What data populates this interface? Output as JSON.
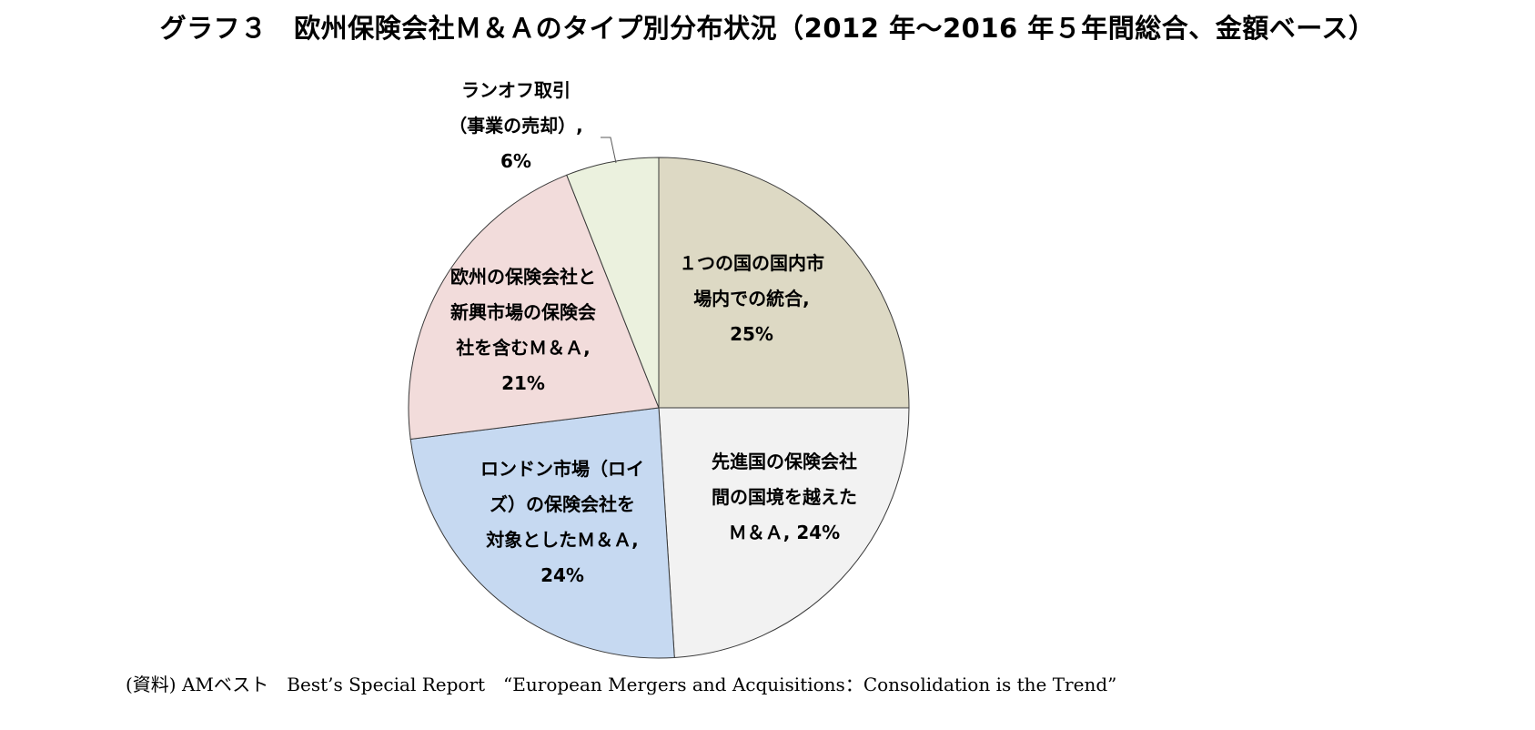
{
  "chart_data": {
    "type": "pie",
    "title": "グラフ３　欧州保険会社Ｍ＆Ａのタイプ別分布状況（2012 年～2016 年５年間総合、金額ベース）",
    "slices": [
      {
        "label": "1つの国の国内市場内での統合",
        "value": 25,
        "color": "#DDD9C4",
        "label_lines": [
          "１つの国の国内市",
          "場内での統合,",
          "25%"
        ]
      },
      {
        "label": "先進国の保険会社間の国境を越えたM&A",
        "value": 24,
        "color": "#F2F2F2",
        "label_lines": [
          "先進国の保険会社",
          "間の国境を越えた",
          "Ｍ＆Ａ, 24%"
        ]
      },
      {
        "label": "ロンドン市場（ロイズ）の保険会社を対象としたM&A",
        "value": 24,
        "color": "#C6D9F1",
        "label_lines": [
          "ロンドン市場（ロイ",
          "ズ）の保険会社を",
          "対象としたＭ＆Ａ,",
          "24%"
        ]
      },
      {
        "label": "欧州の保険会社と新興市場の保険会社を含むM&A",
        "value": 21,
        "color": "#F2DCDB",
        "label_lines": [
          "欧州の保険会社と",
          "新興市場の保険会",
          "社を含むＭ＆Ａ,",
          "21%"
        ]
      },
      {
        "label": "ランオフ取引（事業の売却）",
        "value": 6,
        "color": "#EBF1DE",
        "label_lines": [
          "ランオフ取引",
          "（事業の売却）,",
          "6%"
        ]
      }
    ],
    "legend": "none",
    "source": "(資料) AMベスト　Best’s Special Report　“European Mergers and Acquisitions：Consolidation is the Trend”"
  }
}
